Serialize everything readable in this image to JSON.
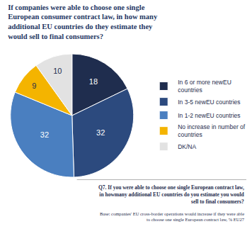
{
  "chart_data": {
    "type": "pie",
    "title": "If companies were able to choose one single European consumer contract law, in how many additional EU countries do they estimate they would sell to final consumers?",
    "categories": [
      "In 6 or more newEU countries",
      "In 3-5 newEU countries",
      "In 1-2 newEU countries",
      "No increase in number of countries",
      "DK/NA"
    ],
    "values": [
      18,
      32,
      32,
      9,
      10
    ],
    "colors": [
      "#1f2d4e",
      "#2c4a7e",
      "#4a7fc0",
      "#f4b400",
      "#e2e2e2"
    ],
    "data_labels": true,
    "legend": "right",
    "annotations": [
      "Q7. If you were able to choose one single European contract law, in howmany additional EU countries do you estimate you would sell to final consumers?",
      "Base: companies' EU cross-border operations would increase if they were able to choose one single European contract law, % EU27"
    ]
  }
}
